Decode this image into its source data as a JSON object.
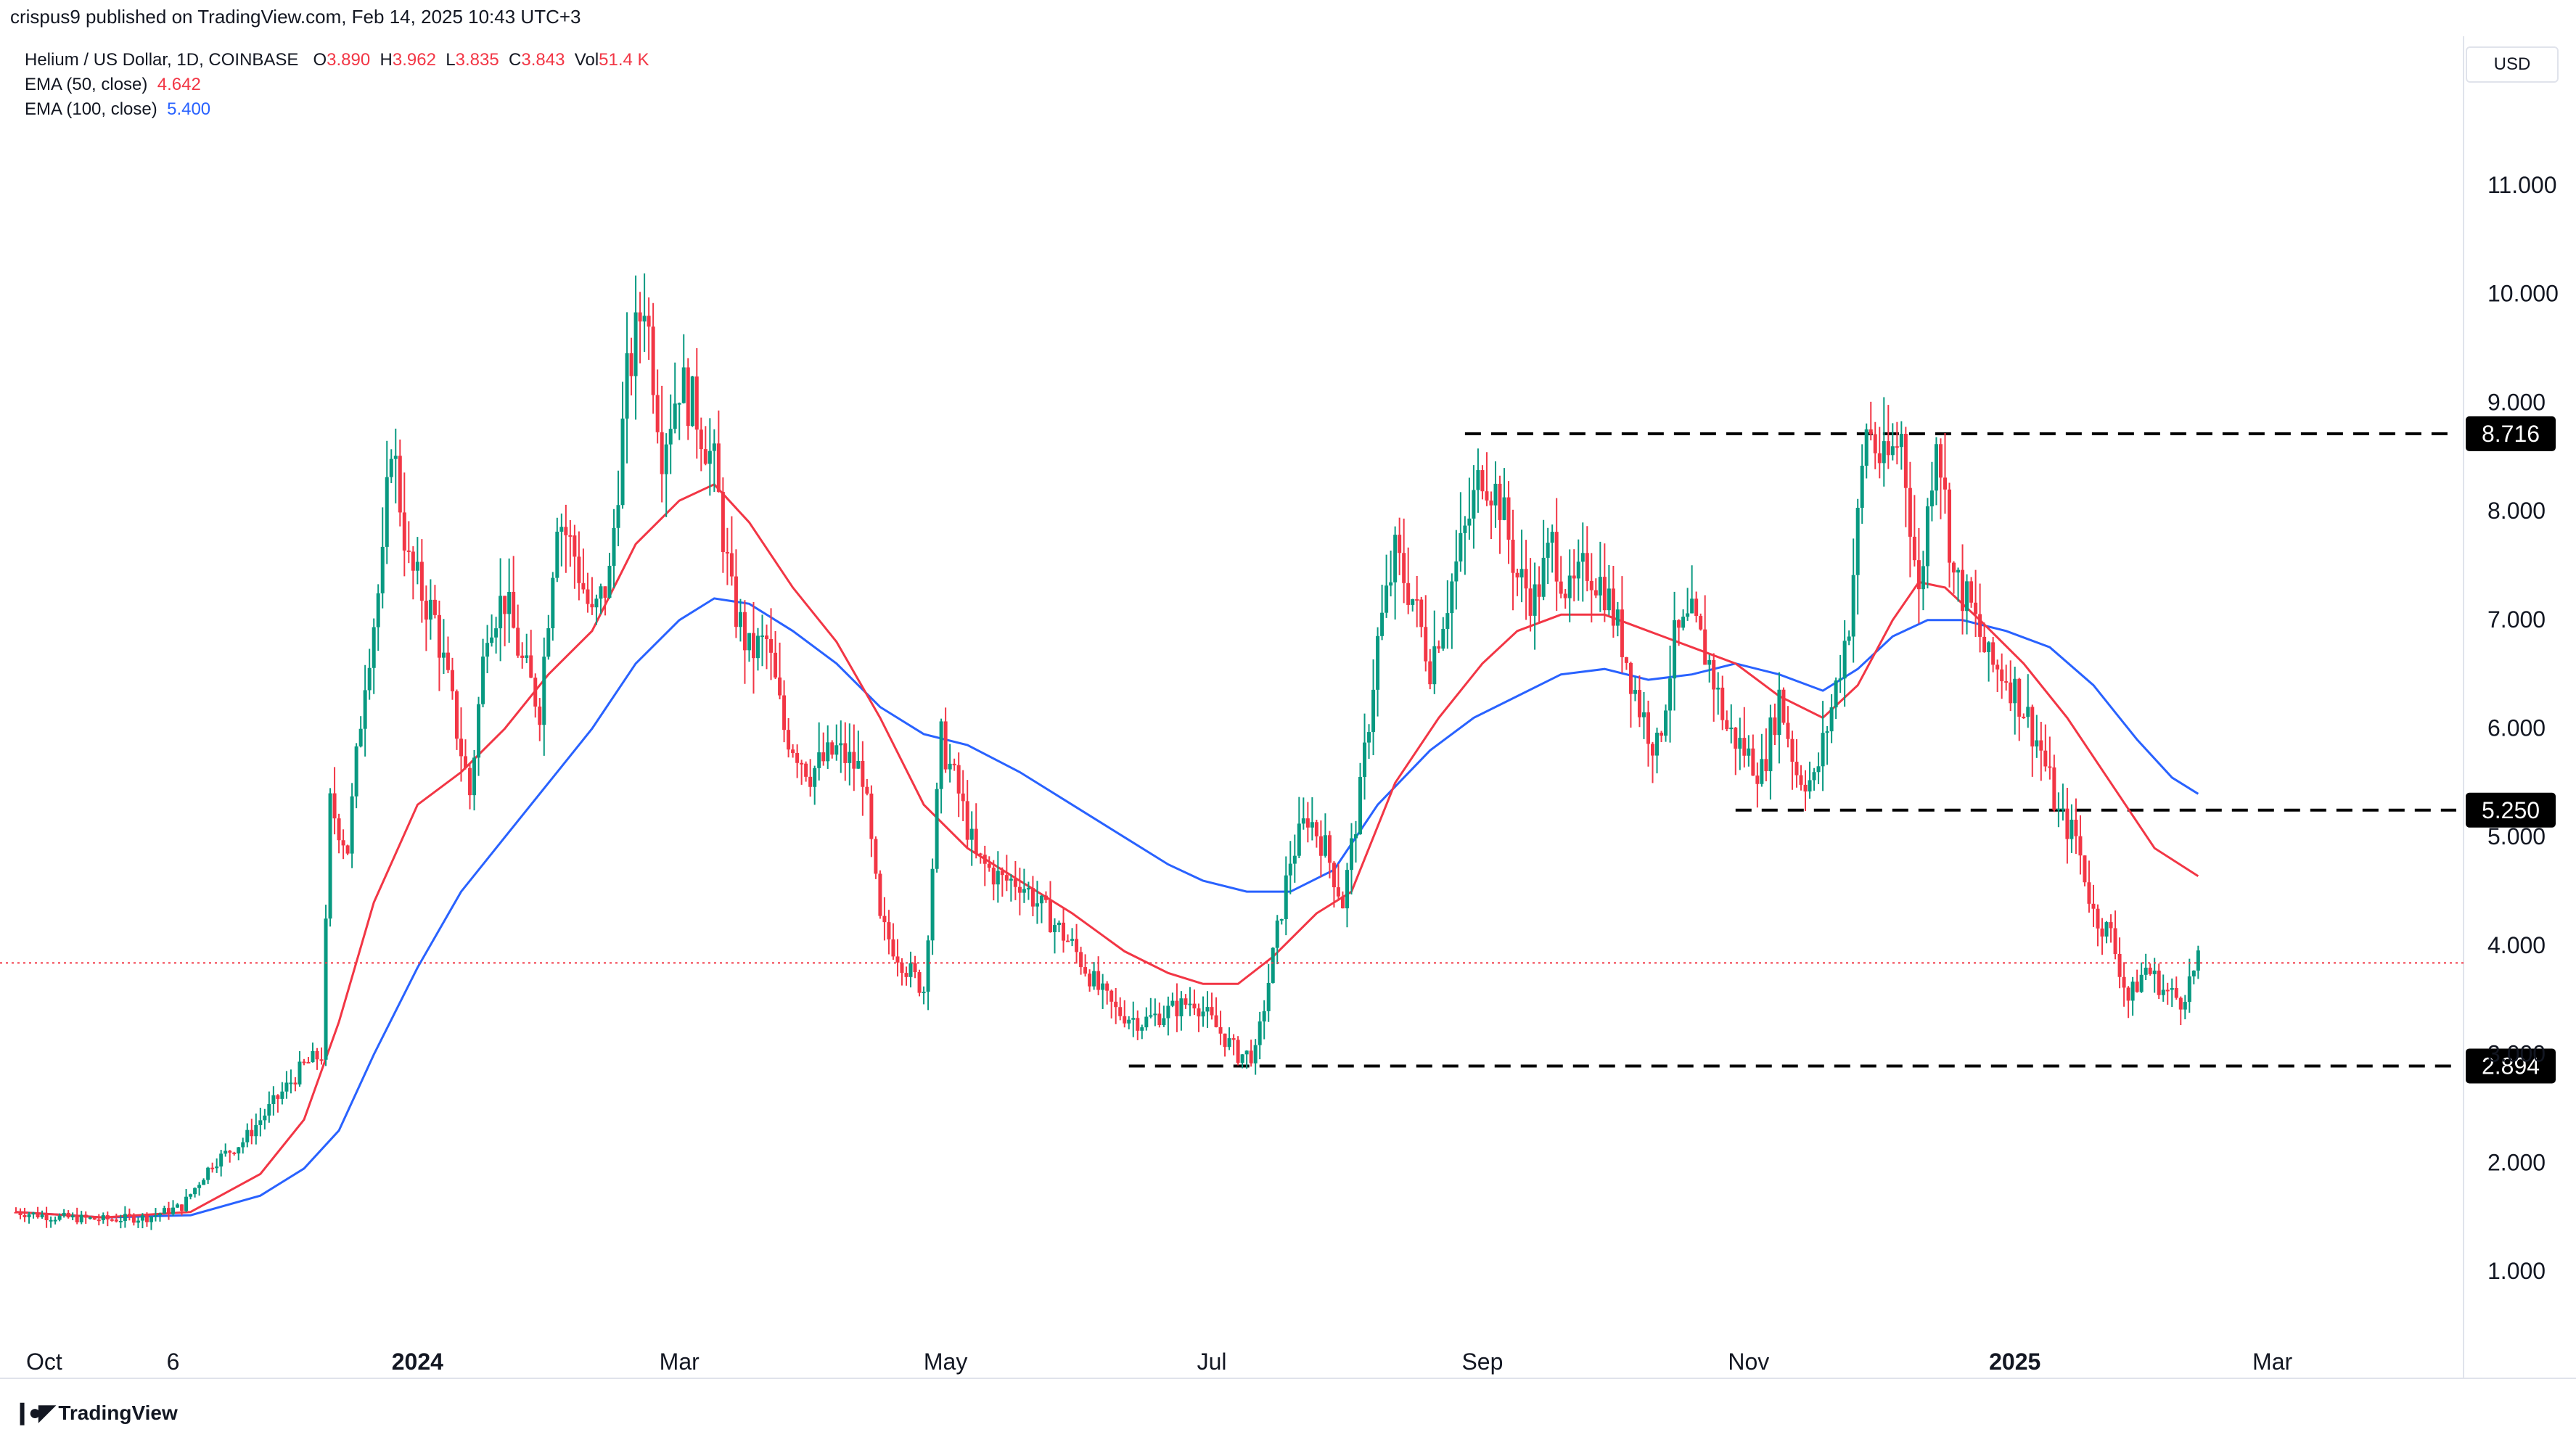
{
  "header": {
    "published_text": "crispus9 published on TradingView.com, Feb 14, 2025 10:43 UTC+3"
  },
  "legend": {
    "symbol": "Helium / US Dollar, 1D, COINBASE",
    "ohlc": {
      "O_label": "O",
      "O": "3.890",
      "H_label": "H",
      "H": "3.962",
      "L_label": "L",
      "L": "3.835",
      "C_label": "C",
      "C": "3.843"
    },
    "vol_label": "Vol",
    "vol": "51.4 K",
    "ema50_label": "EMA (50, close)",
    "ema50_value": "4.642",
    "ema100_label": "EMA (100, close)",
    "ema100_value": "5.400"
  },
  "currency_button": "USD",
  "footer": {
    "brand": "TradingView",
    "logo_icon": "tradingview-logo-icon"
  },
  "colors": {
    "up": "#089981",
    "down": "#f23645",
    "ema50": "#f23645",
    "ema100": "#2962ff",
    "level_box": "#000000",
    "price_line": "#f23645"
  },
  "chart_data": {
    "type": "candlestick",
    "title": "Helium / US Dollar, 1D, COINBASE",
    "x_ticks": [
      {
        "label": "Oct",
        "t": 0.0
      },
      {
        "label": "6",
        "t": 36
      },
      {
        "label": "2024",
        "t": 92
      },
      {
        "label": "Mar",
        "t": 152
      },
      {
        "label": "May",
        "t": 213
      },
      {
        "label": "Jul",
        "t": 274
      },
      {
        "label": "Sep",
        "t": 336
      },
      {
        "label": "Nov",
        "t": 397
      },
      {
        "label": "2025",
        "t": 458
      },
      {
        "label": "Mar",
        "t": 517
      }
    ],
    "x_range": [
      0,
      545
    ],
    "y_ticks": [
      "1.000",
      "2.000",
      "3.000",
      "4.000",
      "5.000",
      "6.000",
      "7.000",
      "8.000",
      "9.000",
      "10.000",
      "11.000"
    ],
    "ylim": [
      0.0,
      12.5
    ],
    "levels": [
      {
        "label": "8.716",
        "value": 8.716,
        "t_start": 332
      },
      {
        "label": "5.250",
        "value": 5.25,
        "t_start": 394
      },
      {
        "label": "2.894",
        "value": 2.894,
        "t_start": 255
      }
    ],
    "last_price": 3.843,
    "price_series_points": [
      [
        0,
        1.55
      ],
      [
        10,
        1.5
      ],
      [
        20,
        1.48
      ],
      [
        30,
        1.5
      ],
      [
        38,
        1.6
      ],
      [
        45,
        2.0
      ],
      [
        52,
        2.2
      ],
      [
        60,
        2.6
      ],
      [
        66,
        2.9
      ],
      [
        70,
        3.0
      ],
      [
        72,
        5.3
      ],
      [
        76,
        4.9
      ],
      [
        80,
        6.5
      ],
      [
        84,
        7.5
      ],
      [
        86,
        8.7
      ],
      [
        90,
        7.5
      ],
      [
        96,
        7.0
      ],
      [
        100,
        6.2
      ],
      [
        104,
        5.4
      ],
      [
        108,
        7.0
      ],
      [
        112,
        7.2
      ],
      [
        116,
        6.6
      ],
      [
        120,
        6.2
      ],
      [
        124,
        8.0
      ],
      [
        128,
        7.6
      ],
      [
        132,
        7.0
      ],
      [
        136,
        7.4
      ],
      [
        140,
        9.2
      ],
      [
        144,
        10.0
      ],
      [
        148,
        8.6
      ],
      [
        152,
        9.2
      ],
      [
        156,
        8.9
      ],
      [
        160,
        8.4
      ],
      [
        164,
        7.2
      ],
      [
        168,
        6.7
      ],
      [
        172,
        6.8
      ],
      [
        176,
        6.0
      ],
      [
        182,
        5.6
      ],
      [
        188,
        5.8
      ],
      [
        194,
        5.6
      ],
      [
        198,
        4.2
      ],
      [
        204,
        3.8
      ],
      [
        208,
        3.6
      ],
      [
        212,
        5.9
      ],
      [
        216,
        5.4
      ],
      [
        220,
        4.8
      ],
      [
        226,
        4.6
      ],
      [
        230,
        4.6
      ],
      [
        236,
        4.3
      ],
      [
        242,
        4.0
      ],
      [
        248,
        3.6
      ],
      [
        252,
        3.4
      ],
      [
        258,
        3.3
      ],
      [
        264,
        3.4
      ],
      [
        270,
        3.5
      ],
      [
        276,
        3.2
      ],
      [
        280,
        3.0
      ],
      [
        284,
        3.0
      ],
      [
        288,
        3.9
      ],
      [
        292,
        4.8
      ],
      [
        296,
        5.2
      ],
      [
        300,
        4.9
      ],
      [
        304,
        4.4
      ],
      [
        308,
        5.4
      ],
      [
        312,
        6.8
      ],
      [
        316,
        7.6
      ],
      [
        320,
        7.2
      ],
      [
        324,
        6.6
      ],
      [
        328,
        7.2
      ],
      [
        332,
        7.8
      ],
      [
        336,
        8.4
      ],
      [
        340,
        8.1
      ],
      [
        344,
        7.4
      ],
      [
        348,
        7.2
      ],
      [
        352,
        7.7
      ],
      [
        356,
        7.2
      ],
      [
        360,
        7.5
      ],
      [
        364,
        7.3
      ],
      [
        368,
        6.8
      ],
      [
        372,
        6.2
      ],
      [
        376,
        5.8
      ],
      [
        380,
        6.8
      ],
      [
        384,
        7.0
      ],
      [
        388,
        6.6
      ],
      [
        392,
        6.0
      ],
      [
        396,
        5.8
      ],
      [
        400,
        5.6
      ],
      [
        404,
        6.3
      ],
      [
        408,
        5.6
      ],
      [
        412,
        5.5
      ],
      [
        416,
        6.2
      ],
      [
        420,
        7.0
      ],
      [
        424,
        8.8
      ],
      [
        428,
        8.4
      ],
      [
        432,
        8.7
      ],
      [
        436,
        7.2
      ],
      [
        440,
        8.8
      ],
      [
        444,
        7.4
      ],
      [
        448,
        7.1
      ],
      [
        452,
        6.6
      ],
      [
        456,
        6.5
      ],
      [
        460,
        6.2
      ],
      [
        464,
        5.8
      ],
      [
        468,
        5.2
      ],
      [
        472,
        5.0
      ],
      [
        476,
        4.3
      ],
      [
        480,
        4.1
      ],
      [
        484,
        3.5
      ],
      [
        488,
        3.8
      ],
      [
        492,
        3.6
      ],
      [
        496,
        3.5
      ],
      [
        500,
        3.843
      ]
    ],
    "ema50_points": [
      [
        0,
        1.55
      ],
      [
        20,
        1.5
      ],
      [
        40,
        1.55
      ],
      [
        56,
        1.9
      ],
      [
        66,
        2.4
      ],
      [
        74,
        3.3
      ],
      [
        82,
        4.4
      ],
      [
        92,
        5.3
      ],
      [
        102,
        5.6
      ],
      [
        112,
        6.0
      ],
      [
        122,
        6.5
      ],
      [
        132,
        6.9
      ],
      [
        142,
        7.7
      ],
      [
        152,
        8.1
      ],
      [
        160,
        8.25
      ],
      [
        168,
        7.9
      ],
      [
        178,
        7.3
      ],
      [
        188,
        6.8
      ],
      [
        198,
        6.1
      ],
      [
        208,
        5.3
      ],
      [
        218,
        4.9
      ],
      [
        230,
        4.6
      ],
      [
        242,
        4.3
      ],
      [
        254,
        3.95
      ],
      [
        264,
        3.75
      ],
      [
        272,
        3.65
      ],
      [
        280,
        3.65
      ],
      [
        288,
        3.9
      ],
      [
        298,
        4.3
      ],
      [
        306,
        4.5
      ],
      [
        316,
        5.5
      ],
      [
        326,
        6.1
      ],
      [
        336,
        6.6
      ],
      [
        344,
        6.9
      ],
      [
        354,
        7.05
      ],
      [
        364,
        7.05
      ],
      [
        374,
        6.9
      ],
      [
        384,
        6.75
      ],
      [
        394,
        6.6
      ],
      [
        404,
        6.3
      ],
      [
        414,
        6.1
      ],
      [
        422,
        6.4
      ],
      [
        430,
        7.0
      ],
      [
        436,
        7.35
      ],
      [
        442,
        7.3
      ],
      [
        450,
        7.0
      ],
      [
        460,
        6.6
      ],
      [
        470,
        6.1
      ],
      [
        480,
        5.5
      ],
      [
        490,
        4.9
      ],
      [
        500,
        4.642
      ]
    ],
    "ema100_points": [
      [
        0,
        1.55
      ],
      [
        20,
        1.5
      ],
      [
        40,
        1.52
      ],
      [
        56,
        1.7
      ],
      [
        66,
        1.95
      ],
      [
        74,
        2.3
      ],
      [
        82,
        3.0
      ],
      [
        92,
        3.8
      ],
      [
        102,
        4.5
      ],
      [
        112,
        5.0
      ],
      [
        122,
        5.5
      ],
      [
        132,
        6.0
      ],
      [
        142,
        6.6
      ],
      [
        152,
        7.0
      ],
      [
        160,
        7.2
      ],
      [
        168,
        7.15
      ],
      [
        178,
        6.9
      ],
      [
        188,
        6.6
      ],
      [
        198,
        6.2
      ],
      [
        208,
        5.95
      ],
      [
        218,
        5.85
      ],
      [
        230,
        5.6
      ],
      [
        242,
        5.3
      ],
      [
        254,
        5.0
      ],
      [
        264,
        4.75
      ],
      [
        272,
        4.6
      ],
      [
        282,
        4.5
      ],
      [
        292,
        4.5
      ],
      [
        302,
        4.7
      ],
      [
        312,
        5.3
      ],
      [
        324,
        5.8
      ],
      [
        334,
        6.1
      ],
      [
        344,
        6.3
      ],
      [
        354,
        6.5
      ],
      [
        364,
        6.55
      ],
      [
        374,
        6.45
      ],
      [
        384,
        6.5
      ],
      [
        394,
        6.6
      ],
      [
        404,
        6.5
      ],
      [
        414,
        6.35
      ],
      [
        422,
        6.55
      ],
      [
        430,
        6.85
      ],
      [
        438,
        7.0
      ],
      [
        446,
        7.0
      ],
      [
        456,
        6.9
      ],
      [
        466,
        6.75
      ],
      [
        476,
        6.4
      ],
      [
        486,
        5.9
      ],
      [
        494,
        5.55
      ],
      [
        500,
        5.4
      ]
    ]
  }
}
